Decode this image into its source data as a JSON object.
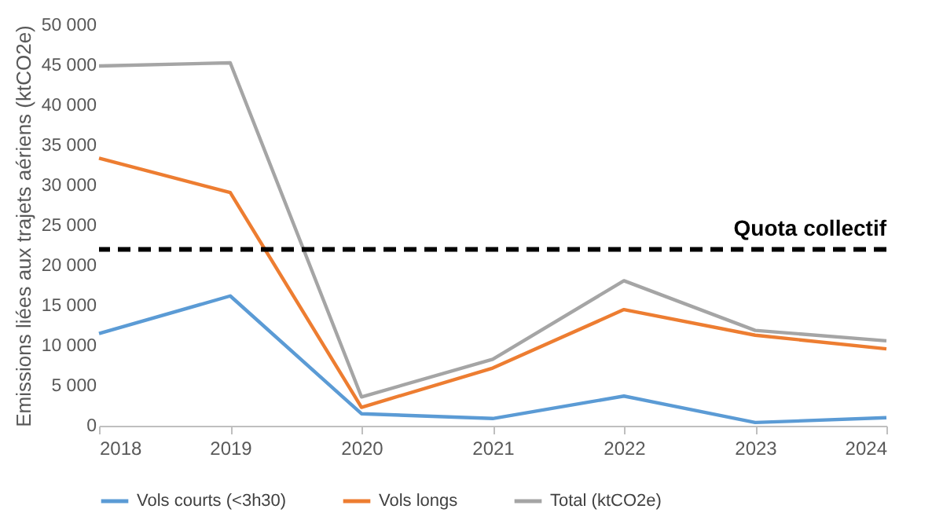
{
  "chart_data": {
    "type": "line",
    "ylabel": "Emissions liées aux trajets aériens (ktCO2e)",
    "x": [
      2018,
      2019,
      2020,
      2021,
      2022,
      2023,
      2024
    ],
    "xlim": [
      2018,
      2024
    ],
    "xticks": [
      2018,
      2019,
      2020,
      2021,
      2022,
      2023,
      2024
    ],
    "ylim": [
      0,
      50000
    ],
    "yticks": [
      0,
      {
        "value": 5000,
        "label": "5 000"
      },
      {
        "value": 10000,
        "label": "10 000"
      },
      {
        "value": 15000,
        "label": "15 000"
      },
      {
        "value": 20000,
        "label": "20 000"
      },
      {
        "value": 25000,
        "label": "25 000"
      },
      {
        "value": 30000,
        "label": "30 000"
      },
      {
        "value": 35000,
        "label": "35 000"
      },
      {
        "value": 40000,
        "label": "40 000"
      },
      {
        "value": 45000,
        "label": "45 000"
      },
      {
        "value": 50000,
        "label": "50 000"
      }
    ],
    "series": [
      {
        "name": "Vols courts (<3h30)",
        "color": "#5b9bd5",
        "values": [
          11500,
          16200,
          1500,
          900,
          3700,
          400,
          1000
        ]
      },
      {
        "name": "Vols longs",
        "color": "#ed7d31",
        "values": [
          33400,
          29100,
          2300,
          7200,
          14500,
          11300,
          9600
        ]
      },
      {
        "name": "Total (ktCO2e)",
        "color": "#a5a5a5",
        "values": [
          44900,
          45300,
          3600,
          8300,
          18100,
          11900,
          10600
        ]
      }
    ],
    "ref_lines": [
      {
        "axis": "y",
        "value": 22000,
        "label": "Quota collectif",
        "color": "#000000",
        "line_style": "dashed"
      }
    ],
    "legend": "bottom",
    "grid": false
  }
}
